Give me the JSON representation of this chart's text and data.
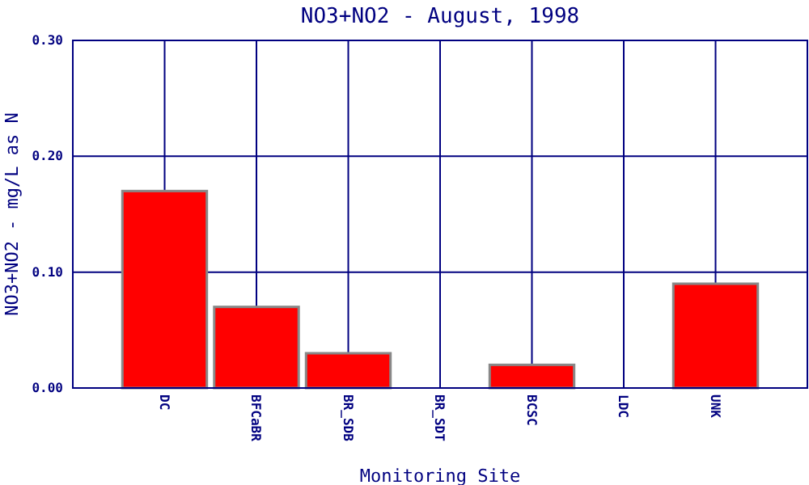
{
  "chart_data": {
    "type": "bar",
    "title": "NO3+NO2 - August, 1998",
    "xlabel": "Monitoring Site",
    "ylabel": "NO3+NO2 - mg/L as N",
    "categories": [
      "DC",
      "BFCaBR",
      "BR_SDB",
      "BR_SDT",
      "BCSC",
      "LDC",
      "UNK"
    ],
    "values": [
      0.17,
      0.07,
      0.03,
      0,
      0.02,
      0,
      0.09
    ],
    "color": "#ff0000",
    "ylim": [
      0,
      0.3
    ],
    "yticks": [
      {
        "value": 0,
        "label": "0.00"
      },
      {
        "value": 0.1,
        "label": "0.10"
      },
      {
        "value": 0.2,
        "label": "0.20"
      },
      {
        "value": 0.3,
        "label": "0.30"
      }
    ],
    "grid": true
  }
}
